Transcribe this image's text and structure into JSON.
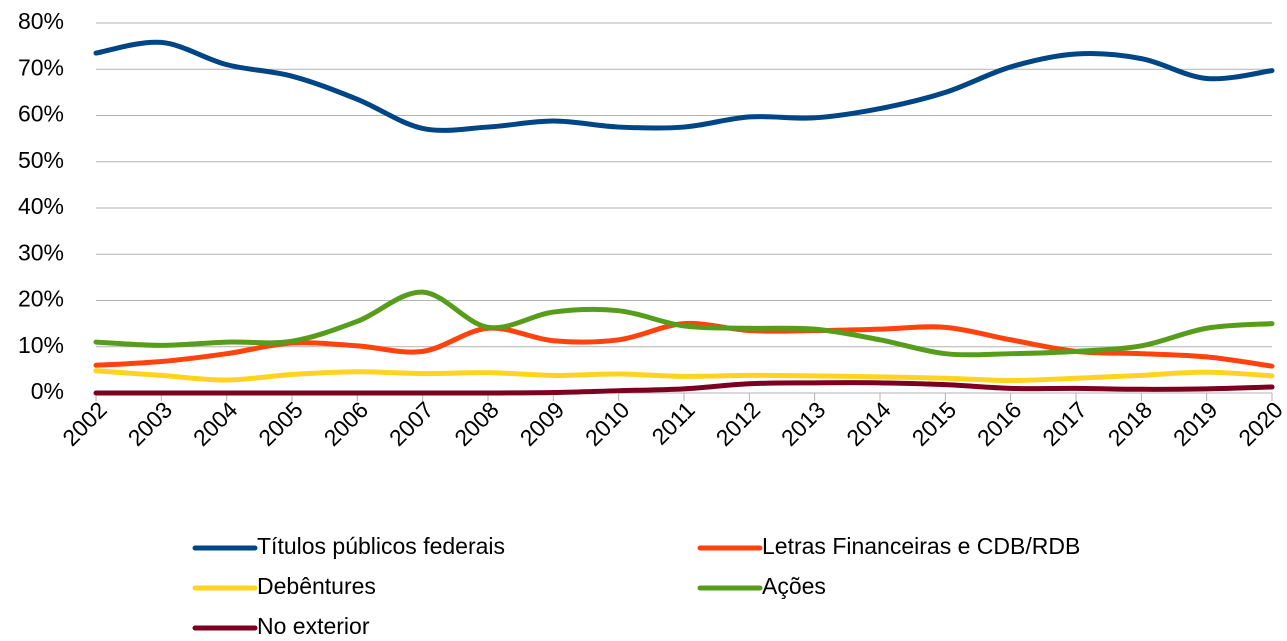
{
  "chart_data": {
    "type": "line",
    "categories": [
      "2002",
      "2003",
      "2004",
      "2005",
      "2006",
      "2007",
      "2008",
      "2009",
      "2010",
      "2011",
      "2012",
      "2013",
      "2014",
      "2015",
      "2016",
      "2017",
      "2018",
      "2019",
      "2020"
    ],
    "series": [
      {
        "name": "Títulos públicos federais",
        "color": "#004586",
        "values": [
          73.5,
          75.8,
          71,
          68.5,
          63.5,
          57.2,
          57.5,
          58.8,
          57.5,
          57.5,
          59.7,
          59.5,
          61.5,
          65,
          70.5,
          73.3,
          72.3,
          68,
          69.7
        ]
      },
      {
        "name": "Letras Financeiras e CDB/RDB",
        "color": "#ff420e",
        "values": [
          6,
          6.8,
          8.5,
          10.8,
          10.2,
          9,
          14,
          11.3,
          11.5,
          15,
          13.5,
          13.5,
          13.8,
          14.2,
          11.5,
          9,
          8.5,
          7.8,
          5.8
        ]
      },
      {
        "name": "Debêntures",
        "color": "#ffd320",
        "values": [
          4.8,
          3.8,
          2.8,
          4,
          4.6,
          4.2,
          4.4,
          3.8,
          4.1,
          3.6,
          3.8,
          3.7,
          3.5,
          3.2,
          2.7,
          3.2,
          3.8,
          4.5,
          3.7
        ]
      },
      {
        "name": "Ações",
        "color": "#579d1c",
        "values": [
          11,
          10.3,
          11,
          11.2,
          15.5,
          21.8,
          14.2,
          17.5,
          17.8,
          14.5,
          14,
          13.8,
          11.5,
          8.5,
          8.5,
          9,
          10.2,
          14,
          15
        ]
      },
      {
        "name": "No exterior",
        "color": "#7e0021",
        "values": [
          0,
          0,
          0,
          0,
          0,
          0,
          0,
          0.1,
          0.5,
          0.9,
          2,
          2.2,
          2.2,
          1.8,
          1,
          1,
          0.8,
          0.9,
          1.3
        ]
      }
    ],
    "ylim": [
      0,
      80
    ],
    "yticks": [
      {
        "value": 0,
        "label": "0%"
      },
      {
        "value": 10,
        "label": "10%"
      },
      {
        "value": 20,
        "label": "20%"
      },
      {
        "value": 30,
        "label": "30%"
      },
      {
        "value": 40,
        "label": "40%"
      },
      {
        "value": 50,
        "label": "50%"
      },
      {
        "value": 60,
        "label": "60%"
      },
      {
        "value": 70,
        "label": "70%"
      },
      {
        "value": 80,
        "label": "80%"
      }
    ],
    "grid": true,
    "legend": "bottom"
  }
}
